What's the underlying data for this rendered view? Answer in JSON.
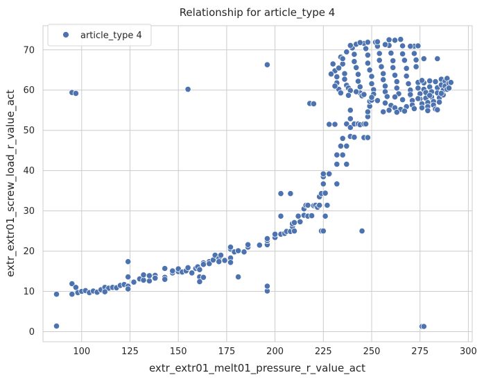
{
  "chart_data": {
    "type": "scatter",
    "title": "Relationship for article_type 4",
    "xlabel": "extr_extr01_melt01_pressure_r_value_act",
    "ylabel": "extr_extr01_screw_load_r_value_act",
    "xlim": [
      80,
      302
    ],
    "ylim": [
      -2.5,
      76
    ],
    "xticks": [
      100,
      125,
      150,
      175,
      200,
      225,
      250,
      275,
      300
    ],
    "yticks": [
      0,
      10,
      20,
      30,
      40,
      50,
      60,
      70
    ],
    "grid": true,
    "legend_position": "top-left",
    "series": [
      {
        "name": "article_type 4",
        "color": "#4c72b0",
        "points": [
          [
            87,
            9.3
          ],
          [
            87,
            1.4
          ],
          [
            95,
            9.3
          ],
          [
            95,
            11.9
          ],
          [
            95,
            59.4
          ],
          [
            97,
            59.2
          ],
          [
            97,
            11
          ],
          [
            98,
            9.7
          ],
          [
            100,
            10
          ],
          [
            102,
            10.2
          ],
          [
            104,
            9.7
          ],
          [
            106,
            10.1
          ],
          [
            108,
            9.8
          ],
          [
            110,
            10.4
          ],
          [
            112,
            11
          ],
          [
            114,
            10.8
          ],
          [
            112,
            9.9
          ],
          [
            116,
            11
          ],
          [
            118,
            10.9
          ],
          [
            120,
            11.5
          ],
          [
            122,
            11.7
          ],
          [
            124,
            11.3
          ],
          [
            124,
            10.6
          ],
          [
            124,
            13.6
          ],
          [
            124,
            17.4
          ],
          [
            127,
            12.3
          ],
          [
            130,
            13.1
          ],
          [
            132,
            12.8
          ],
          [
            132,
            14.1
          ],
          [
            135,
            12.6
          ],
          [
            135,
            13.9
          ],
          [
            138,
            14
          ],
          [
            138,
            13.3
          ],
          [
            143,
            13.5
          ],
          [
            143,
            15.7
          ],
          [
            143,
            13
          ],
          [
            147,
            14.6
          ],
          [
            147,
            15.1
          ],
          [
            150,
            14.9
          ],
          [
            150,
            15.6
          ],
          [
            152,
            14.8
          ],
          [
            154,
            15.1
          ],
          [
            155,
            15.9
          ],
          [
            157,
            14.6
          ],
          [
            155,
            60.2
          ],
          [
            159,
            15.7
          ],
          [
            160,
            16.1
          ],
          [
            161,
            15.4
          ],
          [
            161,
            13.6
          ],
          [
            161,
            12.4
          ],
          [
            163,
            13.5
          ],
          [
            163,
            17.1
          ],
          [
            163,
            16.7
          ],
          [
            166,
            17.4
          ],
          [
            166,
            16.9
          ],
          [
            168,
            17.8
          ],
          [
            169,
            19
          ],
          [
            171,
            18.2
          ],
          [
            171,
            17.4
          ],
          [
            172,
            19
          ],
          [
            174,
            17.7
          ],
          [
            177,
            18.3
          ],
          [
            177,
            20.5
          ],
          [
            177,
            21
          ],
          [
            177,
            17.2
          ],
          [
            179,
            19.8
          ],
          [
            181,
            20.1
          ],
          [
            181,
            13.6
          ],
          [
            184,
            19.8
          ],
          [
            186,
            21
          ],
          [
            186,
            21.6
          ],
          [
            192,
            21.5
          ],
          [
            196,
            21.6
          ],
          [
            196,
            22.6
          ],
          [
            196,
            23.1
          ],
          [
            196,
            10.1
          ],
          [
            196,
            11.3
          ],
          [
            196,
            66.3
          ],
          [
            200,
            23.4
          ],
          [
            200,
            24.2
          ],
          [
            203,
            24.2
          ],
          [
            203,
            34.3
          ],
          [
            203,
            28.7
          ],
          [
            205,
            24.4
          ],
          [
            206,
            24.9
          ],
          [
            208,
            24.9
          ],
          [
            208,
            34.3
          ],
          [
            209,
            26.1
          ],
          [
            209,
            26.8
          ],
          [
            210,
            25
          ],
          [
            210,
            27.1
          ],
          [
            212,
            28.7
          ],
          [
            213,
            27.3
          ],
          [
            215,
            28.9
          ],
          [
            215,
            30.5
          ],
          [
            216,
            31.4
          ],
          [
            217,
            28.7
          ],
          [
            217,
            31.4
          ],
          [
            218,
            56.7
          ],
          [
            219,
            28.8
          ],
          [
            220,
            56.6
          ],
          [
            220,
            31.3
          ],
          [
            221,
            31.4
          ],
          [
            222,
            30.9
          ],
          [
            223,
            31.4
          ],
          [
            223,
            33.5
          ],
          [
            224,
            34.3
          ],
          [
            224,
            25
          ],
          [
            225,
            36.7
          ],
          [
            225,
            38.5
          ],
          [
            225,
            39.2
          ],
          [
            225,
            25
          ],
          [
            226,
            28.7
          ],
          [
            226,
            34.4
          ],
          [
            227,
            31.4
          ],
          [
            228,
            39.2
          ],
          [
            228,
            51.5
          ],
          [
            231,
            51.5
          ],
          [
            232,
            36.7
          ],
          [
            232,
            41.6
          ],
          [
            232,
            43.9
          ],
          [
            234,
            46.1
          ],
          [
            235,
            48
          ],
          [
            235,
            43.9
          ],
          [
            237,
            41.6
          ],
          [
            237,
            46.1
          ],
          [
            237,
            51.6
          ],
          [
            239,
            48.5
          ],
          [
            239,
            50.7
          ],
          [
            239,
            52.9
          ],
          [
            239,
            55
          ],
          [
            241,
            51.6
          ],
          [
            241,
            48.3
          ],
          [
            243,
            51.6
          ],
          [
            244,
            51.4
          ],
          [
            245,
            25
          ],
          [
            246,
            48.2
          ],
          [
            246,
            51.6
          ],
          [
            247,
            51.6
          ],
          [
            248,
            48.2
          ],
          [
            248,
            53.4
          ],
          [
            248,
            54.6
          ],
          [
            249,
            56
          ],
          [
            249,
            57.2
          ],
          [
            250,
            57.5
          ],
          [
            276,
            1.3
          ],
          [
            277,
            1.3
          ],
          [
            277,
            67.8
          ],
          [
            284,
            67.8
          ],
          [
            230,
            66.5
          ],
          [
            231,
            64.8
          ],
          [
            232,
            63.3
          ],
          [
            232,
            61.8
          ],
          [
            233,
            60.2
          ],
          [
            234,
            68.2
          ],
          [
            235,
            66.5
          ],
          [
            236,
            64.1
          ],
          [
            236,
            62.7
          ],
          [
            237,
            61.2
          ],
          [
            238,
            60.5
          ],
          [
            239,
            59.9
          ],
          [
            240,
            70.5
          ],
          [
            241,
            68.9
          ],
          [
            241,
            67.1
          ],
          [
            242,
            65.6
          ],
          [
            243,
            63.9
          ],
          [
            243,
            62.2
          ],
          [
            244,
            60.8
          ],
          [
            244,
            59.3
          ],
          [
            245,
            58.6
          ],
          [
            246,
            71.6
          ],
          [
            247,
            70.3
          ],
          [
            248,
            68.7
          ],
          [
            248,
            66.7
          ],
          [
            249,
            65
          ],
          [
            250,
            63.4
          ],
          [
            250,
            61.6
          ],
          [
            251,
            60.1
          ],
          [
            251,
            59
          ],
          [
            252,
            71.9
          ],
          [
            253,
            70.9
          ],
          [
            254,
            69.1
          ],
          [
            254,
            67.4
          ],
          [
            255,
            65.8
          ],
          [
            256,
            64.1
          ],
          [
            256,
            62.6
          ],
          [
            257,
            61
          ],
          [
            257,
            59.6
          ],
          [
            258,
            58.4
          ],
          [
            259,
            72.5
          ],
          [
            259,
            71.1
          ],
          [
            260,
            69.2
          ],
          [
            261,
            67.3
          ],
          [
            261,
            65.6
          ],
          [
            262,
            63.7
          ],
          [
            263,
            62.1
          ],
          [
            263,
            60.5
          ],
          [
            264,
            59.1
          ],
          [
            265,
            72.6
          ],
          [
            266,
            71
          ],
          [
            266,
            69
          ],
          [
            267,
            67.4
          ],
          [
            268,
            65.4
          ],
          [
            268,
            63.5
          ],
          [
            269,
            61.6
          ],
          [
            270,
            60
          ],
          [
            270,
            58.7
          ],
          [
            271,
            57.4
          ],
          [
            272,
            70.9
          ],
          [
            272,
            69.1
          ],
          [
            273,
            67.5
          ],
          [
            273,
            65.8
          ],
          [
            274,
            61.9
          ],
          [
            274,
            60.5
          ],
          [
            275,
            59.1
          ],
          [
            275,
            57.8
          ],
          [
            276,
            56.6
          ],
          [
            276,
            55.6
          ],
          [
            277,
            61.8
          ],
          [
            277,
            60.2
          ],
          [
            278,
            59.4
          ],
          [
            278,
            58
          ],
          [
            279,
            56.9
          ],
          [
            279,
            55.9
          ],
          [
            280,
            62.3
          ],
          [
            280,
            60.8
          ],
          [
            281,
            59.6
          ],
          [
            281,
            58.3
          ],
          [
            282,
            57.2
          ],
          [
            282,
            56.3
          ],
          [
            283,
            55.3
          ],
          [
            283,
            62.1
          ],
          [
            284,
            60.6
          ],
          [
            284,
            59.3
          ],
          [
            285,
            58.1
          ],
          [
            285,
            57
          ],
          [
            286,
            62.7
          ],
          [
            286,
            61.3
          ],
          [
            287,
            60
          ],
          [
            287,
            58.8
          ],
          [
            288,
            62.2
          ],
          [
            288,
            61
          ],
          [
            289,
            60.2
          ],
          [
            289,
            62.9
          ],
          [
            290,
            61.7
          ],
          [
            290,
            60.5
          ],
          [
            291,
            61.9
          ],
          [
            234,
            59.3
          ],
          [
            238,
            58.7
          ],
          [
            242,
            59.6
          ],
          [
            246,
            58.9
          ],
          [
            250,
            58.2
          ],
          [
            253,
            57.4
          ],
          [
            257,
            56.8
          ],
          [
            260,
            56.2
          ],
          [
            262,
            55.6
          ],
          [
            265,
            55.2
          ],
          [
            268,
            55.9
          ],
          [
            271,
            56.3
          ],
          [
            256,
            54.6
          ],
          [
            259,
            55
          ],
          [
            263,
            54.5
          ],
          [
            267,
            54.8
          ],
          [
            272,
            55.4
          ],
          [
            279,
            54.9
          ],
          [
            284,
            55.1
          ],
          [
            229,
            64
          ],
          [
            231,
            61
          ],
          [
            233,
            65.5
          ],
          [
            235,
            67.8
          ],
          [
            237,
            69.5
          ],
          [
            239,
            71.1
          ],
          [
            242,
            71.4
          ],
          [
            244,
            71.8
          ],
          [
            248,
            71.9
          ],
          [
            253,
            72
          ],
          [
            257,
            71.3
          ],
          [
            262,
            72.4
          ],
          [
            270,
            70.9
          ],
          [
            274,
            71
          ],
          [
            262,
            58.3
          ],
          [
            266,
            57.6
          ],
          [
            270,
            58.9
          ],
          [
            274,
            57.9
          ],
          [
            280,
            58.7
          ],
          [
            286,
            59.2
          ],
          [
            276,
            62.4
          ]
        ]
      }
    ]
  }
}
